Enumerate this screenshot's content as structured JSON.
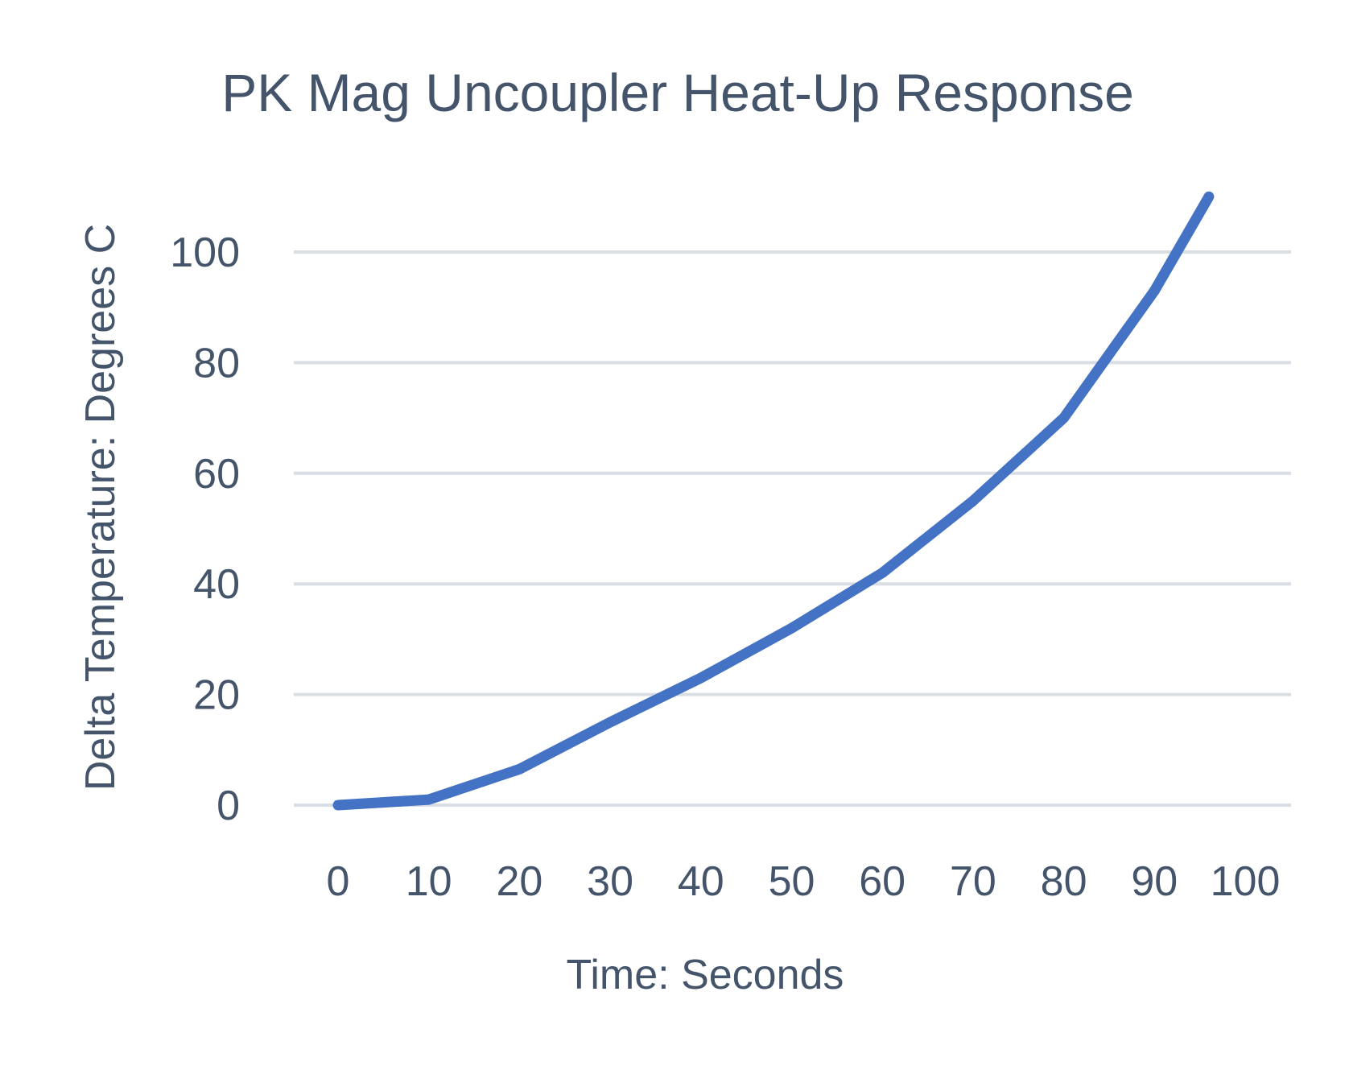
{
  "chart_data": {
    "type": "line",
    "title": "PK Mag Uncoupler Heat-Up Response",
    "xlabel": "Time: Seconds",
    "ylabel": "Delta Temperature: Degrees C",
    "x_ticks": [
      "0",
      "10",
      "20",
      "30",
      "40",
      "50",
      "60",
      "70",
      "80",
      "90",
      "100"
    ],
    "y_ticks": [
      "0",
      "20",
      "40",
      "60",
      "80",
      "100"
    ],
    "xlim": [
      0,
      100
    ],
    "ylim": [
      0,
      110
    ],
    "grid": "horizontal",
    "legend": "none",
    "series": [
      {
        "color": "#4472c4",
        "x": [
          0,
          10,
          20,
          30,
          40,
          50,
          60,
          70,
          80,
          90,
          96
        ],
        "y": [
          0,
          1,
          6.5,
          15,
          23,
          32,
          42,
          55,
          70,
          93,
          110
        ]
      }
    ]
  }
}
